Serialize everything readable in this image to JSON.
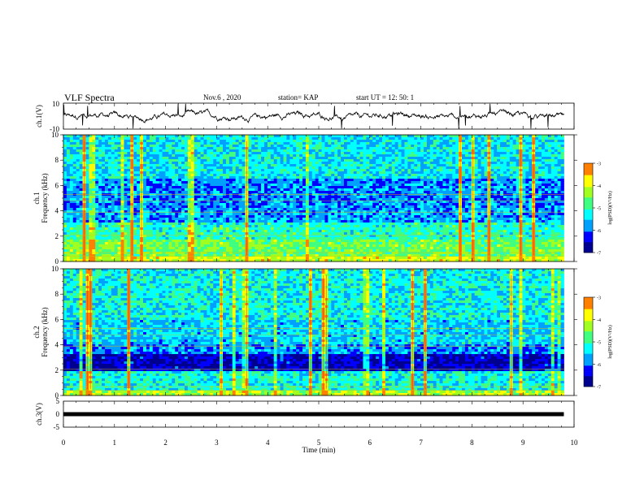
{
  "header": {
    "title": "VLF Spectra",
    "date": "Nov.6 , 2020",
    "station": "station= KAP",
    "start": "start UT = 12: 50: 1"
  },
  "colors": {
    "colormap": [
      "#000090",
      "#0000ff",
      "#00a0ff",
      "#00ffff",
      "#40ff80",
      "#a0ff20",
      "#ffff00",
      "#ff8000",
      "#ff0000",
      "#ffffff"
    ]
  },
  "chart_data": [
    {
      "type": "line",
      "ylabel": "ch.1(V)",
      "ylim": [
        -10,
        10
      ],
      "yticks": [
        "10",
        "-10"
      ],
      "xlim": [
        0,
        10
      ],
      "note_values": "noisy waveform fluctuating roughly between -6 and 5 V"
    },
    {
      "type": "heatmap",
      "ylabel_top": "ch.1",
      "ylabel": "Frequency (kHz)",
      "ylim": [
        0,
        10
      ],
      "yticks": [
        "0",
        "2",
        "4",
        "6",
        "8",
        "10"
      ],
      "xlim": [
        0,
        9.8
      ],
      "colorbar": {
        "label": "log(PSD)(V²/Hz)",
        "range": [
          -7,
          -3
        ],
        "ticks": [
          "-3",
          "-4",
          "-5",
          "-6",
          "-7"
        ]
      }
    },
    {
      "type": "heatmap",
      "ylabel_top": "ch.2",
      "ylabel": "Frequency (kHz)",
      "ylim": [
        0,
        10
      ],
      "yticks": [
        "0",
        "2",
        "4",
        "6",
        "8",
        "10"
      ],
      "xlim": [
        0,
        9.8
      ],
      "colorbar": {
        "label": "log(PSD)(V²/Hz)",
        "range": [
          -7,
          -3
        ],
        "ticks": [
          "-3",
          "-4",
          "-5",
          "-6",
          "-7"
        ]
      }
    },
    {
      "type": "line",
      "ylabel": "ch.3(V)",
      "ylim": [
        -5,
        5
      ],
      "yticks": [
        "5",
        "0",
        "-5"
      ],
      "xlim": [
        0,
        10
      ],
      "xlabel": "Time (min)",
      "xticks": [
        "0",
        "1",
        "2",
        "3",
        "4",
        "5",
        "6",
        "7",
        "8",
        "9",
        "10"
      ],
      "value": 0
    }
  ]
}
